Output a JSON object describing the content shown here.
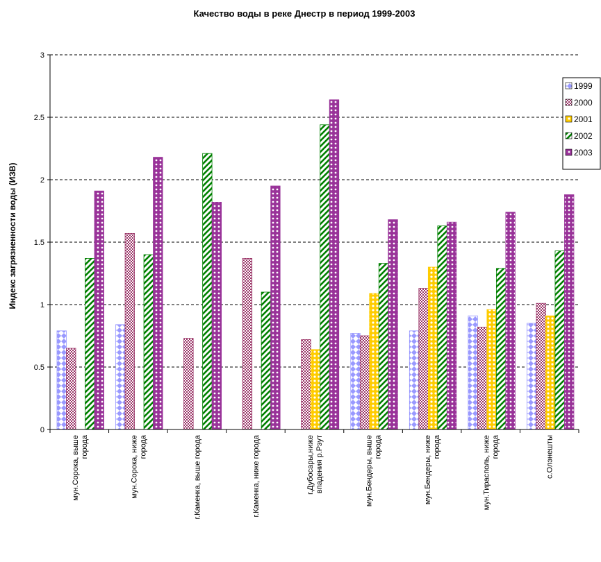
{
  "chart_data": {
    "type": "bar",
    "title": "Качество воды в реке Днестр в период 1999-2003",
    "xlabel": "",
    "ylabel": "Индекс загрязненности воды (ИЗВ)",
    "ylim": [
      0,
      3
    ],
    "yticks": [
      "0",
      "0.5",
      "1",
      "1.5",
      "2",
      "2.5",
      "3"
    ],
    "grid": "horizontal dashed",
    "legend_position": "right",
    "categories": [
      [
        "мун.Сорока, выше",
        "города"
      ],
      [
        "мун.Сорока, ниже",
        "города"
      ],
      [
        "г.Каменка, выше города"
      ],
      [
        "г.Каменка, ниже города"
      ],
      [
        "г.Дубосары,ниже",
        "впадения р.Рэут"
      ],
      [
        "мун.Бендеры, выше",
        "города"
      ],
      [
        "мун.Бендеры, ниже",
        "города"
      ],
      [
        "мун.Тирасполь, ниже",
        "города"
      ],
      [
        "с.Олэнешты"
      ]
    ],
    "series": [
      {
        "name": "1999",
        "color": "#9999ff",
        "values": [
          0.79,
          0.84,
          null,
          null,
          null,
          0.77,
          0.79,
          0.91,
          0.85
        ]
      },
      {
        "name": "2000",
        "color": "#993366",
        "values": [
          0.65,
          1.57,
          0.73,
          1.37,
          0.72,
          0.75,
          1.13,
          0.82,
          1.01
        ]
      },
      {
        "name": "2001",
        "color": "#ffcc00",
        "values": [
          null,
          null,
          null,
          null,
          0.64,
          1.09,
          1.3,
          0.96,
          0.91
        ]
      },
      {
        "name": "2002",
        "color": "#008000",
        "values": [
          1.37,
          1.4,
          2.21,
          1.1,
          2.44,
          1.33,
          1.63,
          1.29,
          1.43
        ]
      },
      {
        "name": "2003",
        "color": "#993399",
        "values": [
          1.91,
          2.18,
          1.82,
          1.95,
          2.64,
          1.68,
          1.66,
          1.74,
          1.88
        ]
      }
    ]
  }
}
